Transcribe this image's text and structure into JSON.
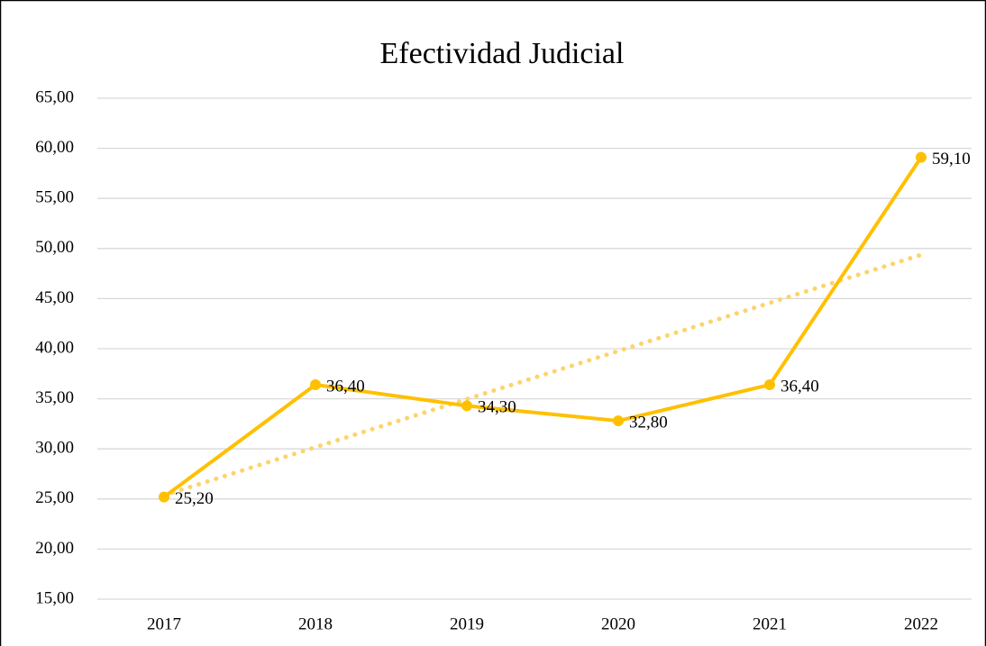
{
  "chart_data": {
    "type": "line",
    "title": "Efectividad Judicial",
    "categories": [
      "2017",
      "2018",
      "2019",
      "2020",
      "2021",
      "2022"
    ],
    "series": [
      {
        "name": "Efectividad Judicial",
        "color": "#ffc000",
        "values": [
          25.2,
          36.4,
          34.3,
          32.8,
          36.4,
          59.1
        ],
        "value_labels": [
          "25,20",
          "36,40",
          "34,30",
          "32,80",
          "36,40",
          "59,10"
        ]
      }
    ],
    "trendline": "linear",
    "trendline_color": "#fdd46b",
    "ylim": [
      15,
      65
    ],
    "yticks": [
      {
        "value": 15,
        "label": "15,00"
      },
      {
        "value": 20,
        "label": "20,00"
      },
      {
        "value": 25,
        "label": "25,00"
      },
      {
        "value": 30,
        "label": "30,00"
      },
      {
        "value": 35,
        "label": "35,00"
      },
      {
        "value": 40,
        "label": "40,00"
      },
      {
        "value": 45,
        "label": "45,00"
      },
      {
        "value": 50,
        "label": "50,00"
      },
      {
        "value": 55,
        "label": "55,00"
      },
      {
        "value": 60,
        "label": "60,00"
      },
      {
        "value": 65,
        "label": "65,00"
      }
    ],
    "grid": true
  }
}
